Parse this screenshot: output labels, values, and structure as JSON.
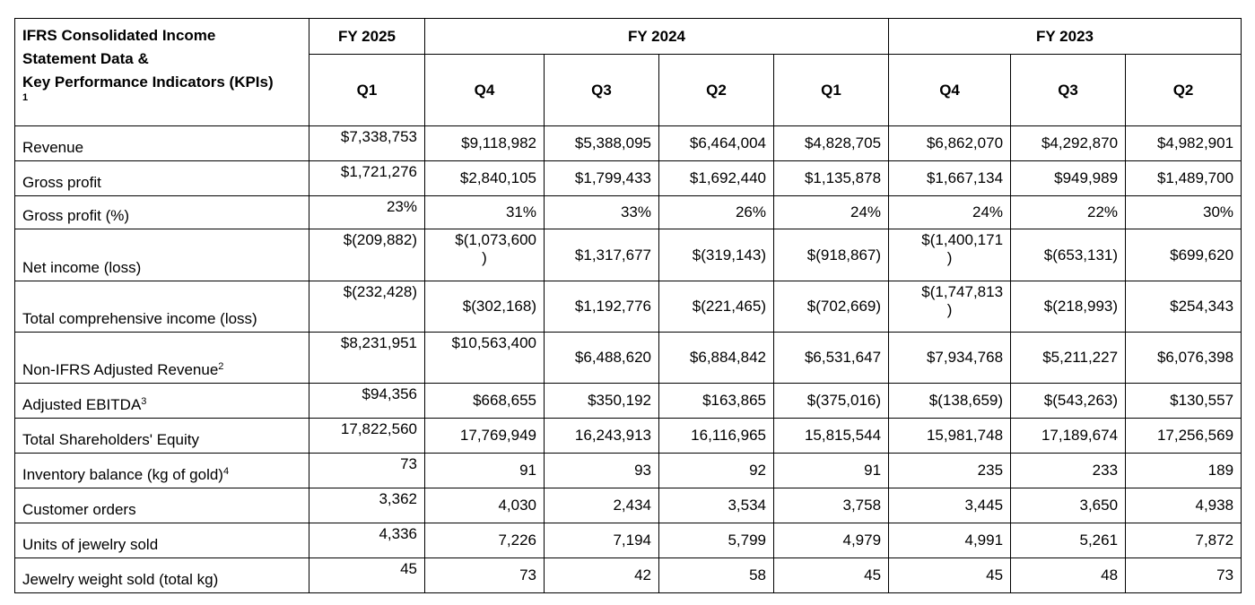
{
  "header": {
    "title_line1": "IFRS Consolidated Income",
    "title_line2": "Statement Data &",
    "title_line3": "Key Performance Indicators (KPIs)",
    "title_note": "1",
    "fy2025": "FY 2025",
    "fy2024": "FY 2024",
    "fy2023": "FY 2023",
    "quarters": [
      "Q1",
      "Q4",
      "Q3",
      "Q2",
      "Q1",
      "Q4",
      "Q3",
      "Q2"
    ]
  },
  "rows": [
    {
      "label": "Revenue",
      "sup": "",
      "values": [
        "$7,338,753",
        "$9,118,982",
        "$5,388,095",
        "$6,464,004",
        "$4,828,705",
        "$6,862,070",
        "$4,292,870",
        "$4,982,901"
      ]
    },
    {
      "label": "Gross profit",
      "sup": "",
      "values": [
        "$1,721,276",
        "$2,840,105",
        "$1,799,433",
        "$1,692,440",
        "$1,135,878",
        "$1,667,134",
        "$949,989",
        "$1,489,700"
      ]
    },
    {
      "label": "Gross profit (%)",
      "sup": "",
      "values": [
        "23%",
        "31%",
        "33%",
        "26%",
        "24%",
        "24%",
        "22%",
        "30%"
      ]
    },
    {
      "label": "Net income (loss)",
      "sup": "",
      "values": [
        "$(209,882)",
        "$(1,073,600",
        "$1,317,677",
        "$(319,143)",
        "$(918,867)",
        "$(1,400,171",
        "$(653,131)",
        "$699,620"
      ],
      "wrap": [
        ")",
        ")"
      ]
    },
    {
      "label": "Total comprehensive income (loss)",
      "sup": "",
      "values": [
        "$(232,428)",
        "$(302,168)",
        "$1,192,776",
        "$(221,465)",
        "$(702,669)",
        "$(1,747,813",
        "$(218,993)",
        "$254,343"
      ],
      "wrap": [
        ")"
      ]
    },
    {
      "label": "Non-IFRS Adjusted Revenue",
      "sup": "2",
      "values": [
        "$8,231,951",
        "$10,563,400",
        "$6,488,620",
        "$6,884,842",
        "$6,531,647",
        "$7,934,768",
        "$5,211,227",
        "$6,076,398"
      ]
    },
    {
      "label": "Adjusted EBITDA",
      "sup": "3",
      "values": [
        "$94,356",
        "$668,655",
        "$350,192",
        "$163,865",
        "$(375,016)",
        "$(138,659)",
        "$(543,263)",
        "$130,557"
      ]
    },
    {
      "label": "Total Shareholders' Equity",
      "sup": "",
      "values": [
        "17,822,560",
        "17,769,949",
        "16,243,913",
        "16,116,965",
        "15,815,544",
        "15,981,748",
        "17,189,674",
        "17,256,569"
      ]
    },
    {
      "label": "Inventory balance (kg of gold)",
      "sup": "4",
      "values": [
        "73",
        "91",
        "93",
        "92",
        "91",
        "235",
        "233",
        "189"
      ]
    },
    {
      "label": "Customer orders",
      "sup": "",
      "values": [
        "3,362",
        "4,030",
        "2,434",
        "3,534",
        "3,758",
        "3,445",
        "3,650",
        "4,938"
      ]
    },
    {
      "label": "Units of jewelry sold",
      "sup": "",
      "values": [
        "4,336",
        "7,226",
        "7,194",
        "5,799",
        "4,979",
        "4,991",
        "5,261",
        "7,872"
      ]
    },
    {
      "label": "Jewelry weight sold (total kg)",
      "sup": "",
      "values": [
        "45",
        "73",
        "42",
        "58",
        "45",
        "45",
        "48",
        "73"
      ]
    }
  ]
}
